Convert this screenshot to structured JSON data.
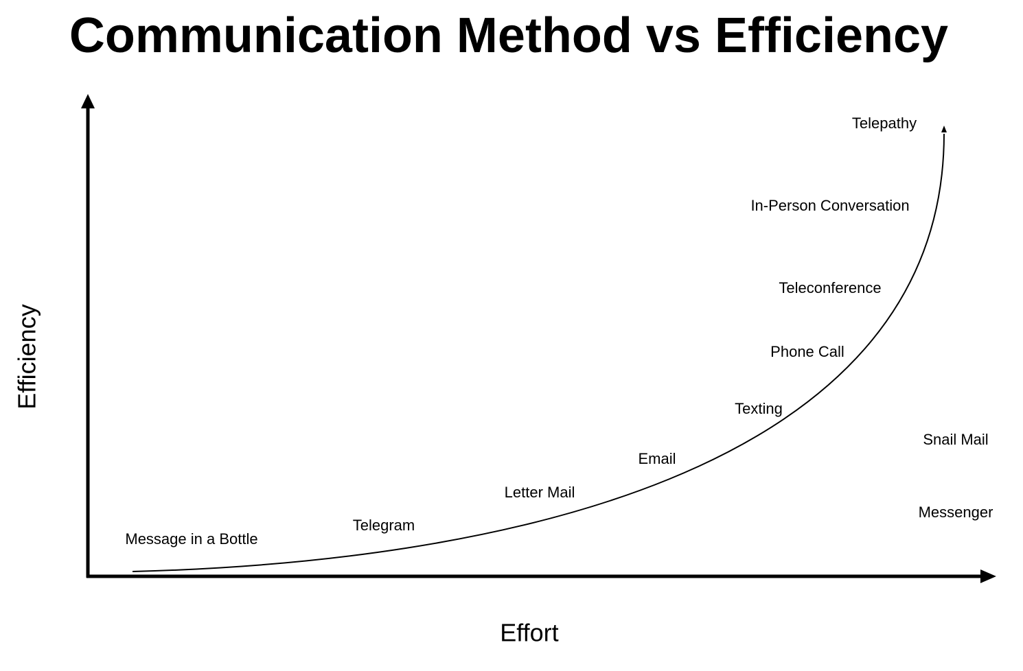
{
  "title": "Communication Method vs Efficiency",
  "x_axis_label": "Effort",
  "y_axis_label": "Efficiency",
  "labels": [
    "Telepathy",
    "In-Person Conversation",
    "Teleconference",
    "Phone Call",
    "Texting",
    "Email",
    "Letter Mail",
    "Telegram",
    "Message in a Bottle",
    "Snail Mail",
    "Messenger"
  ]
}
